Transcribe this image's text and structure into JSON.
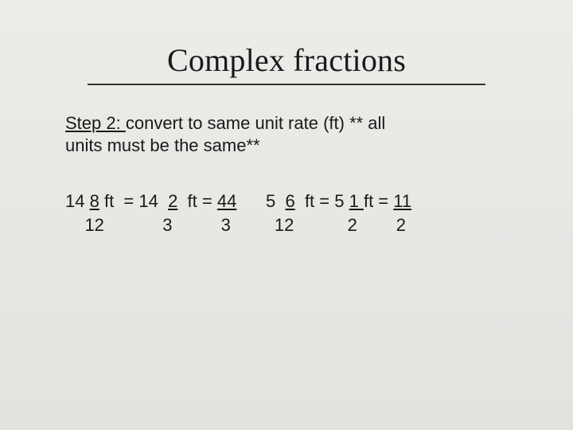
{
  "title": "Complex fractions",
  "step": {
    "label": "Step 2: ",
    "text_a": "convert to same unit rate (ft) ** all",
    "text_b": "units must be the same**"
  },
  "expr": {
    "p1": "14 ",
    "p2": "8",
    "p3": " ft  = 14  ",
    "p4": "2",
    "p5": "  ft = ",
    "p6": "44",
    "p7": "      5  ",
    "p8": "6",
    "p9": "  ft = 5 ",
    "p10": "1 ",
    "p11": "ft = ",
    "p12": "11",
    "row2": "    12            3          3         12           2        2"
  },
  "colors": {
    "background": "#e8e6e3",
    "text": "#1a1a1a",
    "rule": "#323232"
  },
  "typography": {
    "title_font": "Book Antiqua",
    "title_size_pt": 30,
    "body_font": "Arial",
    "body_size_pt": 17
  }
}
